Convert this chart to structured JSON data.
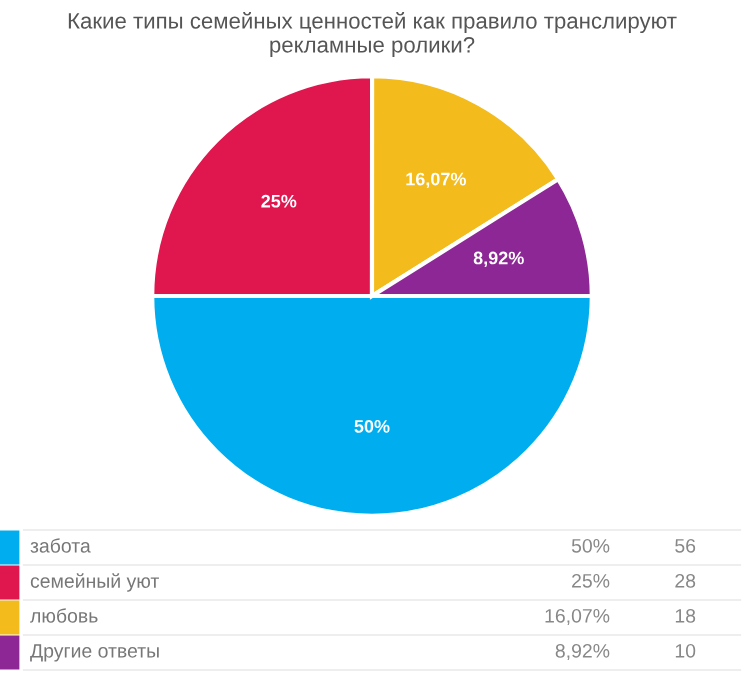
{
  "chart_data": {
    "type": "pie",
    "title": "Какие типы семейных ценностей как правило транслируют\nрекламные ролики?",
    "categories": [
      "забота",
      "семейный уют",
      "любовь",
      "Другие ответы"
    ],
    "values": [
      50,
      25,
      16.07,
      8.92
    ],
    "annotations": [
      "56",
      "28",
      "18",
      "10"
    ],
    "value_labels": [
      "50%",
      "25%",
      "16,07%",
      "8,92%"
    ],
    "colors": [
      "#00aeef",
      "#e0174f",
      "#f4bb1d",
      "#8e2796"
    ],
    "legend": "bottom"
  }
}
